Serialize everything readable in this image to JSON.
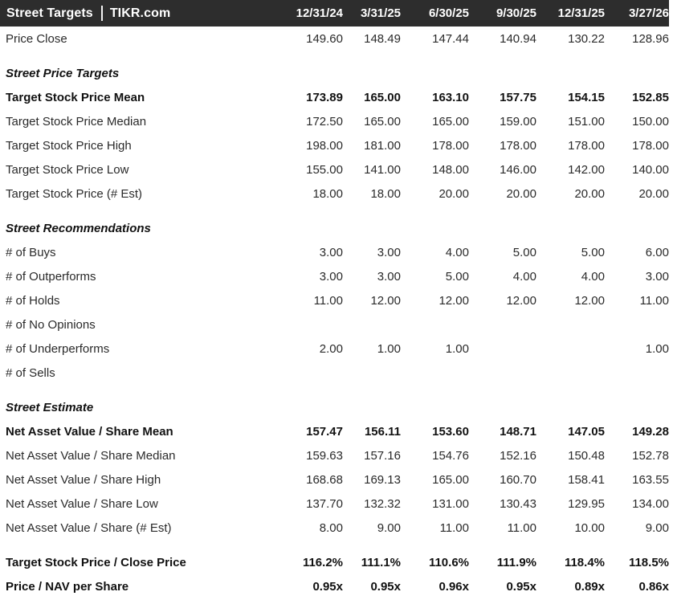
{
  "title": {
    "left": "Street Targets",
    "brand": "TIKR.com"
  },
  "columns": [
    "12/31/24",
    "3/31/25",
    "6/30/25",
    "9/30/25",
    "12/31/25",
    "3/27/26"
  ],
  "colors": {
    "header_bg": "#2d2d2d",
    "header_text": "#ffffff",
    "body_text": "#2a2a2a",
    "bold_text": "#111111",
    "divider": "#f2f2f2"
  },
  "top_rows": [
    {
      "label": "Price Close",
      "bold": false,
      "values": [
        "149.60",
        "148.49",
        "147.44",
        "140.94",
        "130.22",
        "128.96"
      ]
    }
  ],
  "sections": [
    {
      "title": "Street Price Targets",
      "rows": [
        {
          "label": "Target Stock Price Mean",
          "bold": true,
          "values": [
            "173.89",
            "165.00",
            "163.10",
            "157.75",
            "154.15",
            "152.85"
          ]
        },
        {
          "label": "Target Stock Price Median",
          "bold": false,
          "values": [
            "172.50",
            "165.00",
            "165.00",
            "159.00",
            "151.00",
            "150.00"
          ]
        },
        {
          "label": "Target Stock Price High",
          "bold": false,
          "values": [
            "198.00",
            "181.00",
            "178.00",
            "178.00",
            "178.00",
            "178.00"
          ]
        },
        {
          "label": "Target Stock Price Low",
          "bold": false,
          "values": [
            "155.00",
            "141.00",
            "148.00",
            "146.00",
            "142.00",
            "140.00"
          ]
        },
        {
          "label": "Target Stock Price (# Est)",
          "bold": false,
          "values": [
            "18.00",
            "18.00",
            "20.00",
            "20.00",
            "20.00",
            "20.00"
          ]
        }
      ]
    },
    {
      "title": "Street Recommendations",
      "rows": [
        {
          "label": "# of Buys",
          "bold": false,
          "values": [
            "3.00",
            "3.00",
            "4.00",
            "5.00",
            "5.00",
            "6.00"
          ]
        },
        {
          "label": "# of Outperforms",
          "bold": false,
          "values": [
            "3.00",
            "3.00",
            "5.00",
            "4.00",
            "4.00",
            "3.00"
          ]
        },
        {
          "label": "# of Holds",
          "bold": false,
          "values": [
            "11.00",
            "12.00",
            "12.00",
            "12.00",
            "12.00",
            "11.00"
          ]
        },
        {
          "label": "# of No Opinions",
          "bold": false,
          "values": [
            "",
            "",
            "",
            "",
            "",
            ""
          ]
        },
        {
          "label": "# of Underperforms",
          "bold": false,
          "values": [
            "2.00",
            "1.00",
            "1.00",
            "",
            "",
            "1.00"
          ]
        },
        {
          "label": "# of Sells",
          "bold": false,
          "values": [
            "",
            "",
            "",
            "",
            "",
            ""
          ]
        }
      ]
    },
    {
      "title": "Street Estimate",
      "rows": [
        {
          "label": "Net Asset Value / Share Mean",
          "bold": true,
          "values": [
            "157.47",
            "156.11",
            "153.60",
            "148.71",
            "147.05",
            "149.28"
          ]
        },
        {
          "label": "Net Asset Value / Share Median",
          "bold": false,
          "values": [
            "159.63",
            "157.16",
            "154.76",
            "152.16",
            "150.48",
            "152.78"
          ]
        },
        {
          "label": "Net Asset Value / Share High",
          "bold": false,
          "values": [
            "168.68",
            "169.13",
            "165.00",
            "160.70",
            "158.41",
            "163.55"
          ]
        },
        {
          "label": "Net Asset Value / Share Low",
          "bold": false,
          "values": [
            "137.70",
            "132.32",
            "131.00",
            "130.43",
            "129.95",
            "134.00"
          ]
        },
        {
          "label": "Net Asset Value / Share (# Est)",
          "bold": false,
          "values": [
            "8.00",
            "9.00",
            "11.00",
            "11.00",
            "10.00",
            "9.00"
          ]
        }
      ]
    }
  ],
  "footer_rows": [
    {
      "label": "Target Stock Price / Close Price",
      "bold": true,
      "values": [
        "116.2%",
        "111.1%",
        "110.6%",
        "111.9%",
        "118.4%",
        "118.5%"
      ]
    },
    {
      "label": "Price / NAV per Share",
      "bold": true,
      "values": [
        "0.95x",
        "0.95x",
        "0.96x",
        "0.95x",
        "0.89x",
        "0.86x"
      ]
    }
  ]
}
